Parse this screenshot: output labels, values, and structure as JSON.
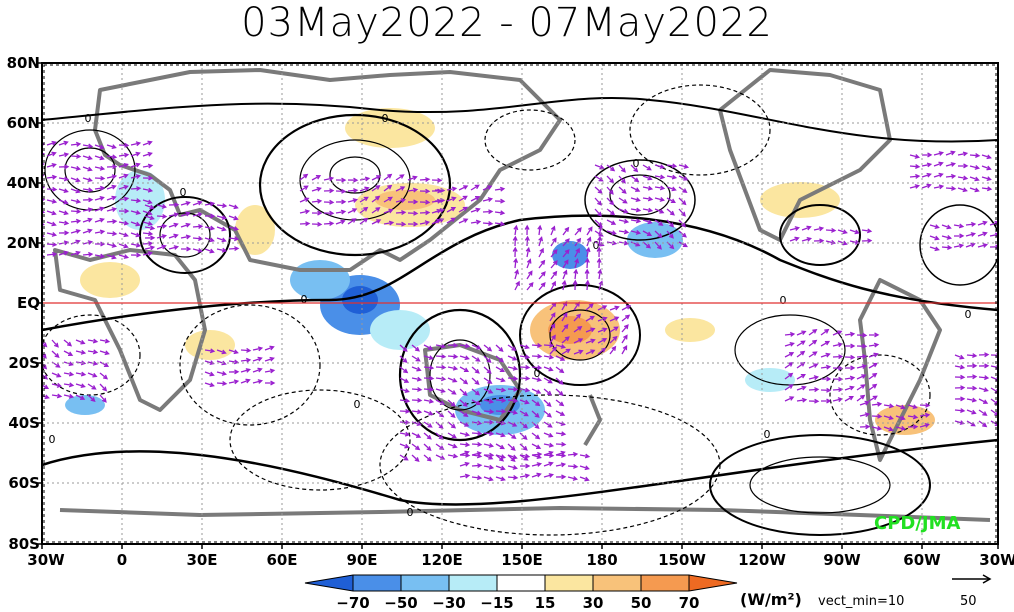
{
  "title": "03May2022 - 07May2022",
  "map": {
    "lat_labels": [
      "80N",
      "60N",
      "40N",
      "20N",
      "EQ",
      "20S",
      "40S",
      "60S",
      "80S"
    ],
    "lon_labels": [
      "30W",
      "0",
      "30E",
      "60E",
      "90E",
      "120E",
      "150E",
      "180",
      "150W",
      "120W",
      "90W",
      "60W",
      "30W"
    ],
    "contour_label": "0"
  },
  "credit": "CPD/JMA",
  "colorbar": {
    "units": "(W/m²)",
    "labels": [
      "−70",
      "−50",
      "−30",
      "−15",
      "15",
      "30",
      "50",
      "70"
    ],
    "colors": [
      "#1f5fd6",
      "#4a8fe8",
      "#78bff2",
      "#b7ecf7",
      "#ffffff",
      "#fbe6a0",
      "#f8c27a",
      "#f59a50",
      "#ee6a22"
    ]
  },
  "vector_key": {
    "label": "vect_min=10",
    "reference": "50"
  },
  "colors": {
    "vectors": "#9a1fcf",
    "equator": "#e03030",
    "coastline": "#7a7a7a",
    "contours": "#000000"
  }
}
